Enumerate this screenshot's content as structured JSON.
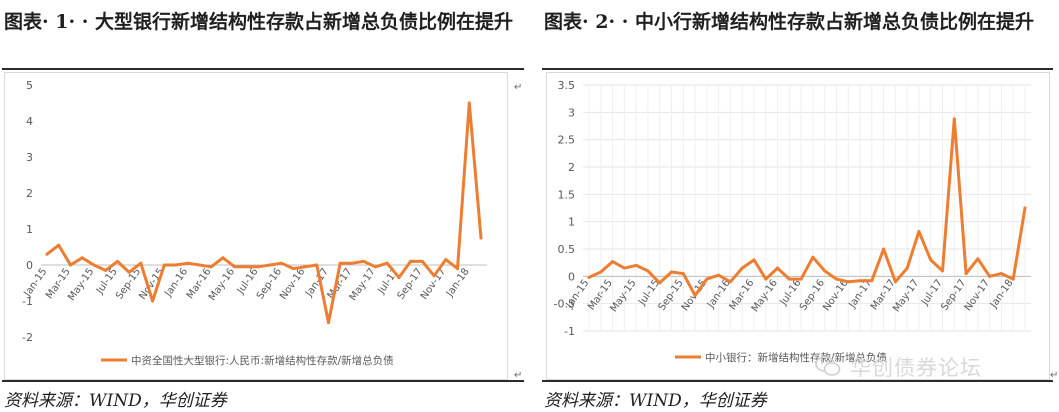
{
  "panels": [
    {
      "caption": "图表 1  大型银行新增结构性存款占新增总负债比例在提升",
      "caption_prefix": "图表",
      "caption_num": "1",
      "caption_text": "大型银行新增结构性存款占新增总负债比例在提升",
      "source": "资料来源：WIND，华创证券"
    },
    {
      "caption": "图表 2  中小行新增结构性存款占新增总负债比例在提升",
      "caption_prefix": "图表",
      "caption_num": "2",
      "caption_text": "中小行新增结构性存款占新增总负债比例在提升",
      "source": "资料来源：WIND，华创证券"
    }
  ],
  "watermark": "华创债券论坛",
  "watermark_icon": "wechat-icon",
  "chart_data": [
    {
      "type": "line",
      "x": [
        "Jan-15",
        "Feb-15",
        "Mar-15",
        "Apr-15",
        "May-15",
        "Jun-15",
        "Jul-15",
        "Aug-15",
        "Sep-15",
        "Oct-15",
        "Nov-15",
        "Dec-15",
        "Jan-16",
        "Feb-16",
        "Mar-16",
        "Apr-16",
        "May-16",
        "Jun-16",
        "Jul-16",
        "Aug-16",
        "Sep-16",
        "Oct-16",
        "Nov-16",
        "Dec-16",
        "Jan-17",
        "Feb-17",
        "Mar-17",
        "Apr-17",
        "May-17",
        "Jun-17",
        "Jul-17",
        "Aug-17",
        "Sep-17",
        "Oct-17",
        "Nov-17",
        "Dec-17",
        "Jan-18",
        "Feb-18"
      ],
      "tick_labels": [
        "Jan-15",
        "Mar-15",
        "May-15",
        "Jul-15",
        "Sep-15",
        "Nov-15",
        "Jan-16",
        "Mar-16",
        "May-16",
        "Jul-16",
        "Sep-16",
        "Nov-16",
        "Jan-17",
        "Mar-17",
        "May-17",
        "Jul-17",
        "Sep-17",
        "Nov-17",
        "Jan-18"
      ],
      "series": [
        {
          "name": "中资全国性大型银行:人民币:新增结构性存款/新增总负债",
          "color": "#ED7D31",
          "values": [
            0.3,
            0.55,
            0.0,
            0.2,
            0.0,
            -0.15,
            0.1,
            -0.2,
            0.05,
            -1.0,
            0.0,
            0.0,
            0.05,
            0.0,
            -0.05,
            0.2,
            -0.05,
            -0.05,
            -0.05,
            0.0,
            0.05,
            -0.1,
            -0.05,
            0.0,
            -1.6,
            0.05,
            0.05,
            0.1,
            -0.05,
            0.05,
            -0.35,
            0.1,
            0.1,
            -0.3,
            0.15,
            -0.1,
            4.5,
            0.75
          ]
        }
      ],
      "ylim": [
        -2,
        5
      ],
      "yticks": [
        -2,
        -1,
        0,
        1,
        2,
        3,
        4,
        5
      ],
      "grid": false,
      "legend": "bottom"
    },
    {
      "type": "line",
      "x": [
        "Jan-15",
        "Feb-15",
        "Mar-15",
        "Apr-15",
        "May-15",
        "Jun-15",
        "Jul-15",
        "Aug-15",
        "Sep-15",
        "Oct-15",
        "Nov-15",
        "Dec-15",
        "Jan-16",
        "Feb-16",
        "Mar-16",
        "Apr-16",
        "May-16",
        "Jun-16",
        "Jul-16",
        "Aug-16",
        "Sep-16",
        "Oct-16",
        "Nov-16",
        "Dec-16",
        "Jan-17",
        "Feb-17",
        "Mar-17",
        "Apr-17",
        "May-17",
        "Jun-17",
        "Jul-17",
        "Aug-17",
        "Sep-17",
        "Oct-17",
        "Nov-17",
        "Dec-17",
        "Jan-18",
        "Feb-18"
      ],
      "tick_labels": [
        "Jan-15",
        "Mar-15",
        "May-15",
        "Jul-15",
        "Sep-15",
        "Nov-15",
        "Jan-16",
        "Mar-16",
        "May-16",
        "Jul-16",
        "Sep-16",
        "Nov-16",
        "Jan-17",
        "Mar-17",
        "May-17",
        "Jul-17",
        "Sep-17",
        "Nov-17",
        "Jan-18"
      ],
      "series": [
        {
          "name": "中小银行：新增结构性存款/新增总负债",
          "color": "#ED7D31",
          "values": [
            -0.02,
            0.08,
            0.27,
            0.15,
            0.2,
            0.1,
            -0.12,
            0.08,
            0.05,
            -0.35,
            -0.05,
            0.02,
            -0.1,
            0.15,
            0.3,
            -0.05,
            0.15,
            -0.05,
            -0.05,
            0.35,
            0.1,
            -0.05,
            -0.1,
            -0.08,
            -0.08,
            0.5,
            -0.1,
            0.15,
            0.82,
            0.3,
            0.1,
            2.88,
            0.05,
            0.32,
            0.0,
            0.05,
            -0.05,
            1.25
          ]
        }
      ],
      "ylim": [
        -1,
        3.5
      ],
      "yticks": [
        -1,
        -0.5,
        0,
        0.5,
        1,
        1.5,
        2,
        2.5,
        3,
        3.5
      ],
      "grid": true,
      "legend": "bottom"
    }
  ]
}
